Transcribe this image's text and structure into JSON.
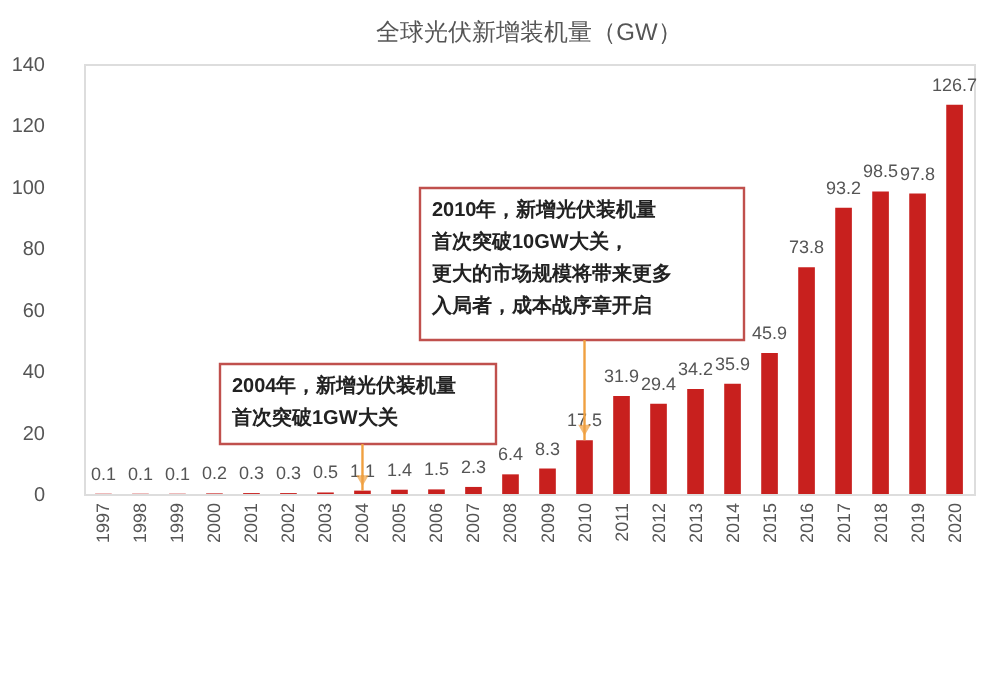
{
  "chart_data": {
    "type": "bar",
    "title": "全球光伏新增装机量（GW）",
    "categories": [
      "1997",
      "1998",
      "1999",
      "2000",
      "2001",
      "2002",
      "2003",
      "2004",
      "2005",
      "2006",
      "2007",
      "2008",
      "2009",
      "2010",
      "2011",
      "2012",
      "2013",
      "2014",
      "2015",
      "2016",
      "2017",
      "2018",
      "2019",
      "2020"
    ],
    "values": [
      0.1,
      0.1,
      0.1,
      0.2,
      0.3,
      0.3,
      0.5,
      1.1,
      1.4,
      1.5,
      2.3,
      6.4,
      8.3,
      17.5,
      31.9,
      29.4,
      34.2,
      35.9,
      45.9,
      73.8,
      93.2,
      98.5,
      97.8,
      126.7
    ],
    "color": "#c8201e",
    "ylim": [
      0,
      140
    ],
    "yticks": [
      0,
      20,
      40,
      60,
      80,
      100,
      120,
      140
    ],
    "grid": false,
    "data_labels": true,
    "annotations": [
      {
        "text": "2004年，新增光伏装机量首次突破1GW大关",
        "x": "2004",
        "y": 1.1
      },
      {
        "text": "2010年，新增光伏装机量首次突破10GW大关，更大的市场规模将带来更多入局者，成本战序章开启",
        "x": "2010",
        "y": 17.5
      }
    ]
  }
}
